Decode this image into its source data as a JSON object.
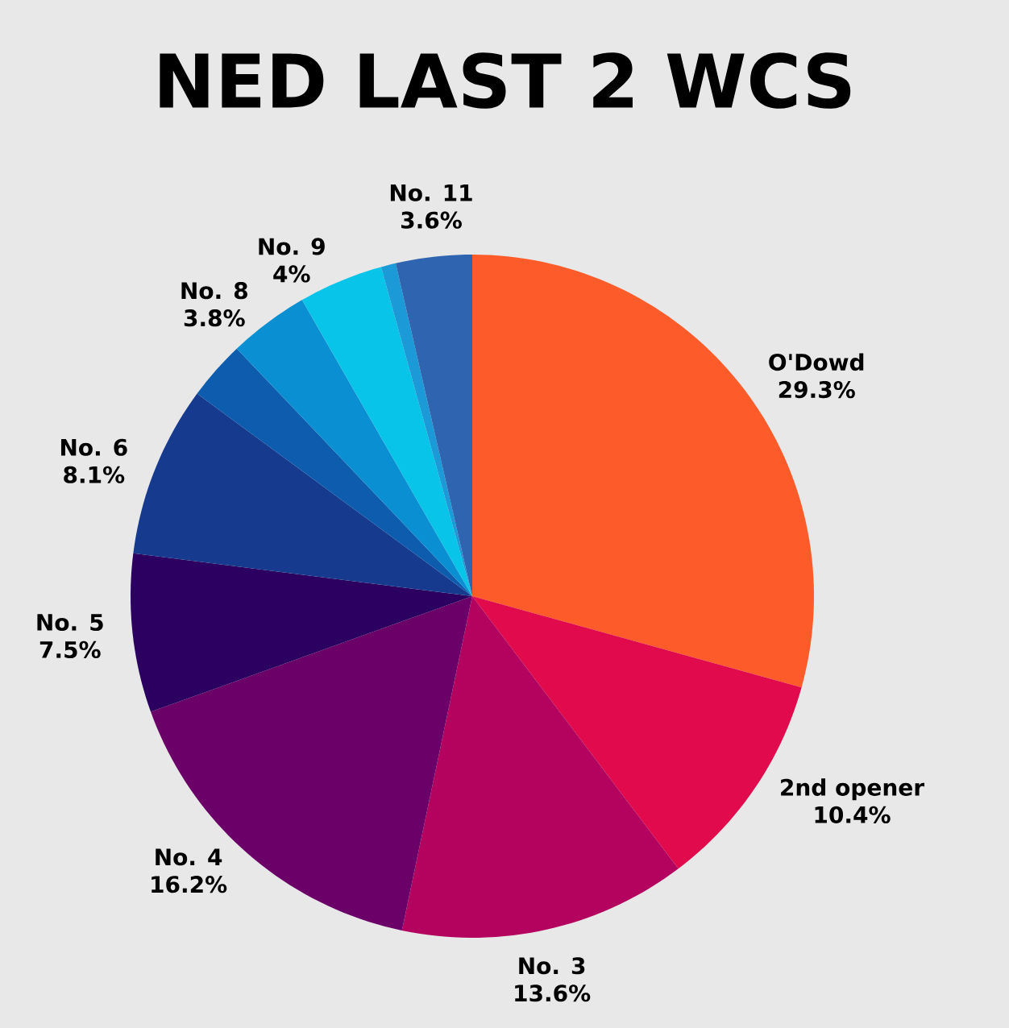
{
  "chart_data": {
    "type": "pie",
    "title": "NED LAST 2 WCS",
    "categories": [
      "O'Dowd",
      "2nd opener",
      "No. 3",
      "No. 4",
      "No. 5",
      "No. 6",
      null,
      "No. 8",
      "No. 9",
      null,
      "No. 11"
    ],
    "values": [
      29.3,
      10.4,
      13.6,
      16.2,
      7.5,
      8.1,
      2.8,
      3.8,
      4,
      0.7,
      3.6
    ],
    "value_labels": [
      "29.3%",
      "10.4%",
      "13.6%",
      "16.2%",
      "7.5%",
      "8.1%",
      null,
      "3.8%",
      "4%",
      null,
      "3.6%"
    ],
    "colors": [
      "#fe5b2a",
      "#e10a4c",
      "#b3035f",
      "#6a0068",
      "#2b0060",
      "#163a8e",
      "#0d5cae",
      "#0a90d2",
      "#08c4e8",
      "#1c9ad8",
      "#2f64b0"
    ]
  }
}
